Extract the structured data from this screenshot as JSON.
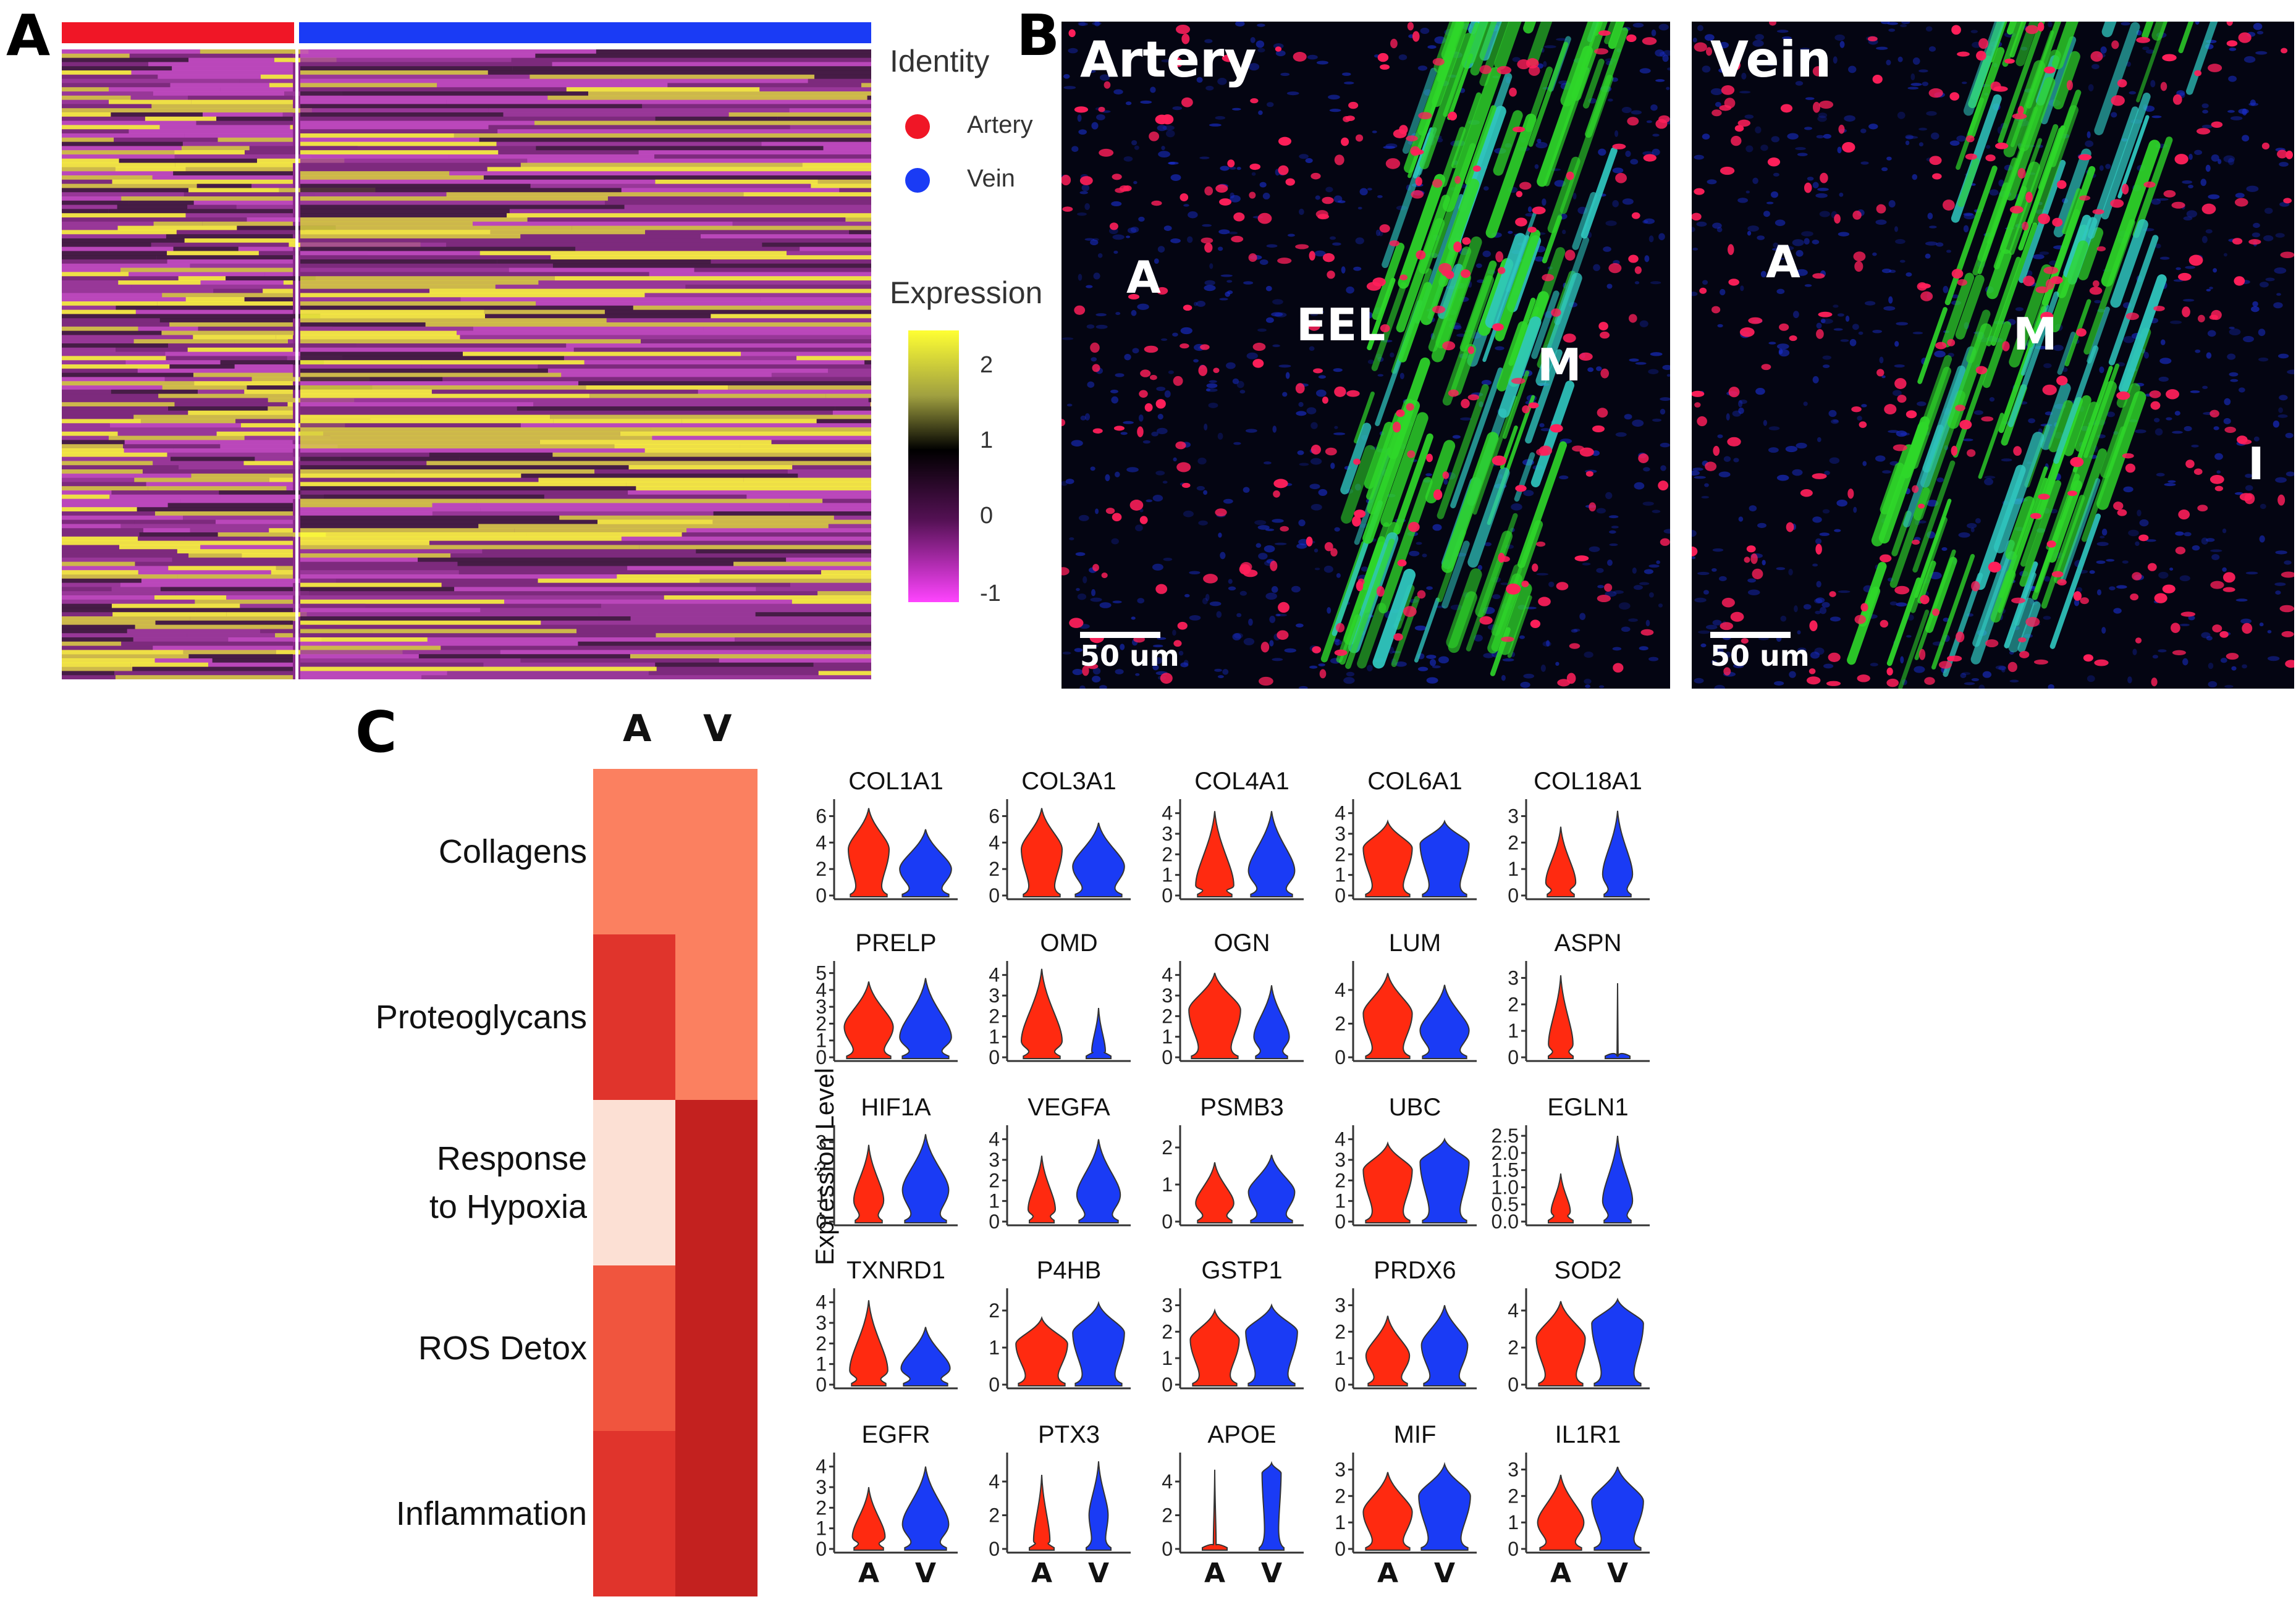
{
  "panels": {
    "a": "A",
    "b": "B",
    "c": "C"
  },
  "panel_a": {
    "legend_identity_title": "Identity",
    "legend_items": [
      {
        "label": "Artery",
        "color": "#f01626"
      },
      {
        "label": "Vein",
        "color": "#1a3bf5"
      }
    ],
    "legend_expression_title": "Expression",
    "colorbar_ticks": [
      "2",
      "1",
      "0",
      "-1"
    ]
  },
  "panel_b": {
    "artery": {
      "title": "Artery",
      "regions": [
        "A",
        "EEL",
        "M"
      ],
      "scale": "50 um"
    },
    "vein": {
      "title": "Vein",
      "regions": [
        "A",
        "M",
        "I"
      ],
      "scale": "50 um"
    }
  },
  "panel_c": {
    "categories": [
      "Collagens",
      "Proteoglycans",
      "Response to Hypoxia",
      "ROS Detox",
      "Inflammation"
    ],
    "category_lines": [
      [
        "Collagens"
      ],
      [
        "Proteoglycans"
      ],
      [
        "Response",
        "to Hypoxia"
      ],
      [
        "ROS Detox"
      ],
      [
        "Inflammation"
      ]
    ],
    "columns": [
      "A",
      "V"
    ]
  },
  "chart_data": [
    {
      "type": "heatmap",
      "panel": "A",
      "title": "",
      "groups": [
        "Artery",
        "Vein"
      ],
      "legend_title": "Expression",
      "color_range": [
        -1,
        2.5
      ],
      "colorbar_ticks": [
        2,
        1,
        0,
        -1
      ]
    },
    {
      "type": "heatmap",
      "panel": "C",
      "columns": [
        "A",
        "V"
      ],
      "rows": [
        "Collagens",
        "Proteoglycans",
        "Response to Hypoxia",
        "ROS Detox",
        "Inflammation"
      ],
      "cell_colors": [
        [
          "#fb8060",
          "#fb8060"
        ],
        [
          "#e0342c",
          "#fb8060"
        ],
        [
          "#fce0d4",
          "#c3211f"
        ],
        [
          "#f0553e",
          "#c3211f"
        ],
        [
          "#e0342c",
          "#c3211f"
        ]
      ]
    },
    {
      "type": "violin",
      "panel": "C",
      "ylabel": "Expression Level",
      "groups": [
        "A",
        "V"
      ],
      "group_colors": {
        "A": "#ff2a10",
        "V": "#1a3bf5"
      },
      "genes": [
        {
          "name": "COL1A1",
          "ticks": [
            "0",
            "2",
            "4",
            "6"
          ],
          "ymax": 7,
          "A": {
            "max": 6.6,
            "mode": 3.5,
            "w": 0.75
          },
          "V": {
            "max": 5.0,
            "mode": 2.0,
            "w": 0.95
          }
        },
        {
          "name": "COL3A1",
          "ticks": [
            "0",
            "2",
            "4",
            "6"
          ],
          "ymax": 7,
          "A": {
            "max": 6.6,
            "mode": 3.5,
            "w": 0.75
          },
          "V": {
            "max": 5.5,
            "mode": 2.2,
            "w": 0.95
          }
        },
        {
          "name": "COL4A1",
          "ticks": [
            "0",
            "1",
            "2",
            "3",
            "4"
          ],
          "ymax": 4.5,
          "A": {
            "max": 4.1,
            "mode": 0.5,
            "w": 0.7
          },
          "V": {
            "max": 4.1,
            "mode": 1.2,
            "w": 0.85
          }
        },
        {
          "name": "COL6A1",
          "ticks": [
            "0",
            "1",
            "2",
            "3",
            "4"
          ],
          "ymax": 4.5,
          "A": {
            "max": 3.6,
            "mode": 2.3,
            "w": 0.9
          },
          "V": {
            "max": 3.6,
            "mode": 2.5,
            "w": 0.9
          }
        },
        {
          "name": "COL18A1",
          "ticks": [
            "0",
            "1",
            "2",
            "3"
          ],
          "ymax": 3.5,
          "A": {
            "max": 2.6,
            "mode": 0.5,
            "w": 0.55
          },
          "V": {
            "max": 3.2,
            "mode": 0.8,
            "w": 0.55
          }
        },
        {
          "name": "PRELP",
          "ticks": [
            "0",
            "1",
            "2",
            "3",
            "4",
            "5"
          ],
          "ymax": 5.5,
          "A": {
            "max": 4.5,
            "mode": 1.8,
            "w": 0.9
          },
          "V": {
            "max": 4.7,
            "mode": 1.2,
            "w": 0.95
          }
        },
        {
          "name": "OMD",
          "ticks": [
            "0",
            "1",
            "2",
            "3",
            "4"
          ],
          "ymax": 4.5,
          "A": {
            "max": 4.3,
            "mode": 0.8,
            "w": 0.75
          },
          "V": {
            "max": 2.4,
            "mode": 0.3,
            "w": 0.25
          }
        },
        {
          "name": "OGN",
          "ticks": [
            "0",
            "1",
            "2",
            "3",
            "4"
          ],
          "ymax": 4.5,
          "A": {
            "max": 4.1,
            "mode": 2.3,
            "w": 0.95
          },
          "V": {
            "max": 3.5,
            "mode": 1.0,
            "w": 0.65
          }
        },
        {
          "name": "LUM",
          "ticks": [
            "0",
            "2",
            "4"
          ],
          "ymax": 5.5,
          "A": {
            "max": 5.0,
            "mode": 2.6,
            "w": 0.9
          },
          "V": {
            "max": 4.3,
            "mode": 1.6,
            "w": 0.9
          }
        },
        {
          "name": "ASPN",
          "ticks": [
            "0",
            "1",
            "2",
            "3"
          ],
          "ymax": 3.5,
          "A": {
            "max": 3.1,
            "mode": 0.5,
            "w": 0.45
          },
          "V": {
            "max": 2.8,
            "mode": 0.05,
            "w": 0.02
          }
        },
        {
          "name": "HIF1A",
          "ticks": [
            "0",
            "1",
            "2",
            "3"
          ],
          "ymax": 3.5,
          "A": {
            "max": 2.9,
            "mode": 0.8,
            "w": 0.55
          },
          "V": {
            "max": 3.3,
            "mode": 1.2,
            "w": 0.85
          }
        },
        {
          "name": "VEGFA",
          "ticks": [
            "0",
            "1",
            "2",
            "3",
            "4"
          ],
          "ymax": 4.5,
          "A": {
            "max": 3.2,
            "mode": 0.6,
            "w": 0.5
          },
          "V": {
            "max": 4.0,
            "mode": 1.3,
            "w": 0.8
          }
        },
        {
          "name": "PSMB3",
          "ticks": [
            "0",
            "1",
            "2"
          ],
          "ymax": 2.5,
          "A": {
            "max": 1.6,
            "mode": 0.5,
            "w": 0.7
          },
          "V": {
            "max": 1.8,
            "mode": 0.8,
            "w": 0.85
          }
        },
        {
          "name": "UBC",
          "ticks": [
            "0",
            "1",
            "2",
            "3",
            "4"
          ],
          "ymax": 4.5,
          "A": {
            "max": 3.8,
            "mode": 2.5,
            "w": 0.9
          },
          "V": {
            "max": 4.0,
            "mode": 2.9,
            "w": 0.9
          }
        },
        {
          "name": "EGLN1",
          "ticks": [
            "0.0",
            "0.5",
            "1.0",
            "1.5",
            "2.0",
            "2.5"
          ],
          "ymax": 2.7,
          "A": {
            "max": 1.4,
            "mode": 0.3,
            "w": 0.35
          },
          "V": {
            "max": 2.5,
            "mode": 0.6,
            "w": 0.55
          }
        },
        {
          "name": "TXNRD1",
          "ticks": [
            "0",
            "1",
            "2",
            "3",
            "4"
          ],
          "ymax": 4.5,
          "A": {
            "max": 4.1,
            "mode": 0.7,
            "w": 0.7
          },
          "V": {
            "max": 2.8,
            "mode": 0.8,
            "w": 0.9
          }
        },
        {
          "name": "P4HB",
          "ticks": [
            "0",
            "1",
            "2"
          ],
          "ymax": 2.5,
          "A": {
            "max": 1.8,
            "mode": 1.1,
            "w": 0.95
          },
          "V": {
            "max": 2.2,
            "mode": 1.4,
            "w": 0.95
          }
        },
        {
          "name": "GSTP1",
          "ticks": [
            "0",
            "1",
            "2",
            "3"
          ],
          "ymax": 3.5,
          "A": {
            "max": 2.8,
            "mode": 1.7,
            "w": 0.9
          },
          "V": {
            "max": 3.0,
            "mode": 2.0,
            "w": 0.95
          }
        },
        {
          "name": "PRDX6",
          "ticks": [
            "0",
            "1",
            "2",
            "3"
          ],
          "ymax": 3.5,
          "A": {
            "max": 2.6,
            "mode": 1.1,
            "w": 0.8
          },
          "V": {
            "max": 3.0,
            "mode": 1.5,
            "w": 0.85
          }
        },
        {
          "name": "SOD2",
          "ticks": [
            "0",
            "2",
            "4"
          ],
          "ymax": 5.0,
          "A": {
            "max": 4.5,
            "mode": 2.5,
            "w": 0.9
          },
          "V": {
            "max": 4.6,
            "mode": 3.3,
            "w": 0.95
          }
        },
        {
          "name": "EGFR",
          "ticks": [
            "0",
            "1",
            "2",
            "3",
            "4"
          ],
          "ymax": 4.5,
          "A": {
            "max": 3.0,
            "mode": 0.6,
            "w": 0.6
          },
          "V": {
            "max": 4.0,
            "mode": 1.2,
            "w": 0.85
          }
        },
        {
          "name": "PTX3",
          "ticks": [
            "0",
            "2",
            "4"
          ],
          "ymax": 5.5,
          "A": {
            "max": 4.4,
            "mode": 0.5,
            "w": 0.3
          },
          "V": {
            "max": 5.2,
            "mode": 2.0,
            "w": 0.35
          }
        },
        {
          "name": "APOE",
          "ticks": [
            "0",
            "2",
            "4"
          ],
          "ymax": 5.5,
          "A": {
            "max": 4.7,
            "mode": 0.3,
            "w": 0.05
          },
          "V": {
            "max": 5.1,
            "mode": 4.5,
            "w": 0.35
          }
        },
        {
          "name": "MIF",
          "ticks": [
            "0",
            "1",
            "2",
            "3"
          ],
          "ymax": 3.5,
          "A": {
            "max": 2.9,
            "mode": 1.4,
            "w": 0.9
          },
          "V": {
            "max": 3.2,
            "mode": 2.0,
            "w": 0.95
          }
        },
        {
          "name": "IL1R1",
          "ticks": [
            "0",
            "1",
            "2",
            "3"
          ],
          "ymax": 3.5,
          "A": {
            "max": 2.8,
            "mode": 1.0,
            "w": 0.85
          },
          "V": {
            "max": 3.1,
            "mode": 1.8,
            "w": 0.95
          }
        }
      ]
    }
  ]
}
